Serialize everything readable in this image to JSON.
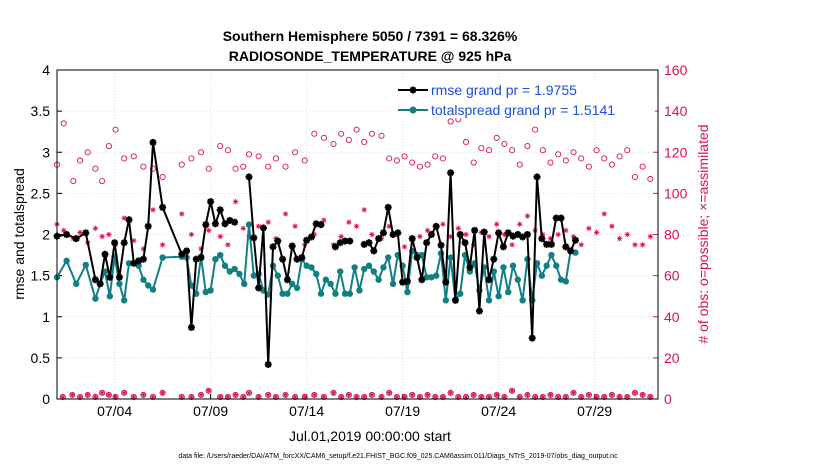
{
  "chart_data": {
    "type": "line",
    "title_line1": "Southern Hemisphere 5050 / 7391 = 68.326%",
    "title_line2": "RADIOSONDE_TEMPERATURE @ 925 hPa",
    "xlabel": "Jul.01,2019 00:00:00 start",
    "ylabel": "rmse and totalspread",
    "y2label": "# of obs: o=possible; ×=assimilated",
    "xlim": [
      1,
      32.3
    ],
    "ylim": [
      0,
      4
    ],
    "y2lim": [
      0,
      160
    ],
    "x_ticks": [
      {
        "value": 4,
        "label": "07/04"
      },
      {
        "value": 9,
        "label": "07/09"
      },
      {
        "value": 14,
        "label": "07/14"
      },
      {
        "value": 19,
        "label": "07/19"
      },
      {
        "value": 24,
        "label": "07/24"
      },
      {
        "value": 29,
        "label": "07/29"
      }
    ],
    "y_ticks": [
      {
        "value": 0,
        "label": "0"
      },
      {
        "value": 0.5,
        "label": "0.5"
      },
      {
        "value": 1,
        "label": "1"
      },
      {
        "value": 1.5,
        "label": "1.5"
      },
      {
        "value": 2,
        "label": "2"
      },
      {
        "value": 2.5,
        "label": "2.5"
      },
      {
        "value": 3,
        "label": "3"
      },
      {
        "value": 3.5,
        "label": "3.5"
      },
      {
        "value": 4,
        "label": "4"
      }
    ],
    "y2_ticks": [
      {
        "value": 0,
        "label": "0"
      },
      {
        "value": 20,
        "label": "20"
      },
      {
        "value": 40,
        "label": "40"
      },
      {
        "value": 60,
        "label": "60"
      },
      {
        "value": 80,
        "label": "80"
      },
      {
        "value": 100,
        "label": "100"
      },
      {
        "value": 120,
        "label": "120"
      },
      {
        "value": 140,
        "label": "140"
      },
      {
        "value": 160,
        "label": "160"
      }
    ],
    "legend": [
      {
        "label": "rmse grand pr = 1.9755",
        "color": "#000000",
        "marker": "star"
      },
      {
        "label": "totalspread grand pr = 1.5141",
        "color": "#117f83",
        "marker": "dot"
      }
    ],
    "colors": {
      "rmse": "#000000",
      "spread": "#117f83",
      "obs": "#d7125a"
    },
    "series": [
      {
        "name": "rmse",
        "x": [
          1.0,
          1.5,
          2.0,
          2.5,
          3.0,
          3.25,
          3.5,
          3.75,
          4.0,
          4.25,
          4.5,
          4.75,
          5.0,
          5.25,
          5.5,
          5.75,
          6.0,
          6.5,
          7.5,
          7.75,
          8.0,
          8.25,
          8.5,
          8.75,
          9.0,
          9.25,
          9.5,
          9.75,
          10.0,
          10.25,
          10.5,
          10.75,
          11.0,
          11.25,
          11.5,
          11.75,
          12.0,
          12.25,
          12.5,
          12.75,
          13.0,
          13.25,
          13.5,
          13.75,
          14.0,
          14.25,
          14.5,
          14.75,
          15.0,
          15.25,
          15.5,
          15.75,
          16.0,
          16.25,
          16.5,
          16.75,
          17.0,
          17.25,
          17.5,
          17.75,
          18.0,
          18.25,
          18.5,
          18.75,
          19.0,
          19.25,
          19.5,
          19.75,
          20.0,
          20.25,
          20.5,
          20.75,
          21.0,
          21.25,
          21.5,
          21.75,
          22.0,
          22.25,
          22.5,
          22.75,
          23.0,
          23.25,
          23.5,
          23.75,
          24.0,
          24.25,
          24.5,
          24.75,
          25.0,
          25.25,
          25.5,
          25.75,
          26.0,
          26.25,
          26.5,
          26.75,
          27.0,
          27.25,
          27.5,
          27.75,
          28.0,
          28.25,
          28.5,
          28.75,
          29.0,
          29.25,
          29.5,
          29.75,
          30.0,
          30.25,
          30.5,
          30.75,
          31.0,
          31.25,
          31.5,
          31.75,
          32.0
        ],
        "values": [
          1.98,
          2.0,
          1.95,
          2.02,
          1.45,
          1.4,
          1.76,
          1.48,
          1.9,
          1.48,
          1.9,
          2.18,
          1.65,
          1.68,
          1.7,
          2.1,
          3.12,
          2.33,
          1.76,
          1.8,
          0.87,
          1.7,
          1.72,
          2.12,
          2.4,
          2.13,
          2.3,
          2.13,
          2.17,
          2.15,
          null,
          null,
          2.7,
          1.96,
          1.35,
          2.08,
          0.42,
          1.85,
          1.92,
          1.7,
          1.45,
          1.86,
          1.7,
          1.72,
          1.93,
          1.97,
          2.13,
          2.12,
          null,
          null,
          1.85,
          1.9,
          1.92,
          1.92,
          null,
          null,
          1.88,
          1.9,
          1.8,
          1.95,
          2.02,
          2.33,
          2.0,
          2.02,
          1.42,
          1.43,
          1.95,
          1.72,
          1.45,
          1.9,
          2.0,
          2.1,
          1.87,
          1.42,
          2.75,
          1.2,
          2.0,
          1.9,
          1.6,
          2.05,
          1.07,
          2.03,
          1.45,
          1.7,
          2.02,
          1.85,
          2.02,
          1.98,
          2.0,
          1.97,
          2.0,
          0.74,
          2.7,
          1.95,
          1.88,
          1.88,
          2.2,
          2.2,
          1.85,
          1.8,
          1.93,
          null,
          null,
          null,
          null,
          null,
          null,
          null,
          null,
          null,
          null,
          null,
          null,
          null,
          null,
          null,
          null
        ]
      },
      {
        "name": "totalspread",
        "x": [
          1.0,
          1.5,
          2.0,
          2.5,
          3.0,
          3.25,
          3.5,
          3.75,
          4.0,
          4.25,
          4.5,
          4.75,
          5.0,
          5.25,
          5.5,
          5.75,
          6.0,
          6.5,
          7.5,
          7.75,
          8.0,
          8.25,
          8.5,
          8.75,
          9.0,
          9.25,
          9.5,
          9.75,
          10.0,
          10.25,
          10.5,
          10.75,
          11.0,
          11.25,
          11.5,
          11.75,
          12.0,
          12.25,
          12.5,
          12.75,
          13.0,
          13.25,
          13.5,
          13.75,
          14.0,
          14.25,
          14.5,
          14.75,
          15.0,
          15.25,
          15.5,
          15.75,
          16.0,
          16.25,
          16.5,
          16.75,
          17.0,
          17.25,
          17.5,
          17.75,
          18.0,
          18.25,
          18.5,
          18.75,
          19.0,
          19.25,
          19.5,
          19.75,
          20.0,
          20.25,
          20.5,
          20.75,
          21.0,
          21.25,
          21.5,
          21.75,
          22.0,
          22.25,
          22.5,
          22.75,
          23.0,
          23.25,
          23.5,
          23.75,
          24.0,
          24.25,
          24.5,
          24.75,
          25.0,
          25.25,
          25.5,
          25.75,
          26.0,
          26.25,
          26.5,
          26.75,
          27.0,
          27.25,
          27.5,
          27.75,
          28.0
        ],
        "values": [
          1.48,
          1.68,
          1.4,
          1.63,
          1.22,
          1.4,
          1.55,
          1.25,
          1.73,
          1.4,
          1.2,
          1.65,
          null,
          1.62,
          1.45,
          1.38,
          1.33,
          1.72,
          1.73,
          1.72,
          1.38,
          1.28,
          1.73,
          1.3,
          1.32,
          1.7,
          1.75,
          1.62,
          1.55,
          1.58,
          1.52,
          1.4,
          2.12,
          1.5,
          1.52,
          1.32,
          1.27,
          1.62,
          1.5,
          1.28,
          1.28,
          1.4,
          1.35,
          1.7,
          1.62,
          1.6,
          1.52,
          1.28,
          1.45,
          1.4,
          1.28,
          1.55,
          1.28,
          1.28,
          1.6,
          1.32,
          1.58,
          1.62,
          1.55,
          1.45,
          1.6,
          1.72,
          1.4,
          1.75,
          1.62,
          1.3,
          1.8,
          1.75,
          1.75,
          1.48,
          1.48,
          1.5,
          1.77,
          1.2,
          1.72,
          1.2,
          1.28,
          1.75,
          1.55,
          1.65,
          1.32,
          1.6,
          1.2,
          1.55,
          1.25,
          1.6,
          1.3,
          1.62,
          1.45,
          1.2,
          1.7,
          1.2,
          1.65,
          1.5,
          1.62,
          1.75,
          1.62,
          1.45,
          1.43,
          1.8,
          1.78
        ]
      },
      {
        "name": "obs_possible",
        "x": [
          1.0,
          1.35,
          1.85,
          2.2,
          2.6,
          3.0,
          3.35,
          3.7,
          4.05,
          4.5,
          5.0,
          5.5,
          6.0,
          6.5,
          7.5,
          8.0,
          8.5,
          8.9,
          9.5,
          9.9,
          10.3,
          10.7,
          11.0,
          11.5,
          12.0,
          12.4,
          12.9,
          13.4,
          13.9,
          14.4,
          14.9,
          15.4,
          15.8,
          16.2,
          16.6,
          17.0,
          17.4,
          17.9,
          18.3,
          18.7,
          19.1,
          19.5,
          19.9,
          20.3,
          20.7,
          21.1,
          21.5,
          21.9,
          22.3,
          22.7,
          23.1,
          23.5,
          23.9,
          24.3,
          24.7,
          25.1,
          25.5,
          25.9,
          26.3,
          26.7,
          27.1,
          27.5,
          27.9,
          28.3,
          28.7,
          29.1,
          29.5,
          29.9,
          30.3,
          30.7,
          31.1,
          31.5,
          31.9
        ],
        "values": [
          114,
          134,
          106,
          116,
          120,
          112,
          106,
          123,
          131,
          117,
          118,
          113,
          112,
          108,
          114,
          117,
          120,
          112,
          123,
          121,
          112,
          113,
          119,
          118,
          113,
          117,
          113,
          120,
          116,
          129,
          127,
          124,
          129,
          126,
          131,
          125,
          129,
          128,
          117,
          116,
          118,
          115,
          113,
          114,
          118,
          117,
          135,
          136,
          125,
          115,
          122,
          121,
          127,
          124,
          121,
          114,
          123,
          131,
          121,
          115,
          119,
          116,
          120,
          117,
          113,
          121,
          117,
          114,
          118,
          121,
          108,
          113,
          107
        ]
      },
      {
        "name": "obs_assimilated",
        "x": [
          1.0,
          1.35,
          1.85,
          2.2,
          2.6,
          3.0,
          3.35,
          3.7,
          4.05,
          4.5,
          5.0,
          5.5,
          6.0,
          6.5,
          7.5,
          8.0,
          8.5,
          8.9,
          9.5,
          9.9,
          10.3,
          10.7,
          11.0,
          11.5,
          12.0,
          12.4,
          12.9,
          13.4,
          13.9,
          14.4,
          14.9,
          15.4,
          15.8,
          16.2,
          16.6,
          17.0,
          17.4,
          17.9,
          18.3,
          18.7,
          19.1,
          19.5,
          19.9,
          20.3,
          20.7,
          21.1,
          21.5,
          21.9,
          22.3,
          22.7,
          23.1,
          23.5,
          23.9,
          24.3,
          24.7,
          25.1,
          25.5,
          25.9,
          26.3,
          26.7,
          27.1,
          27.5,
          27.9,
          28.3,
          28.7,
          29.1,
          29.5,
          29.9,
          30.3,
          30.7,
          31.1,
          31.5,
          31.9
        ],
        "values": [
          85,
          82,
          78,
          81,
          76,
          83,
          79,
          80,
          75,
          88,
          77,
          73,
          92,
          75,
          90,
          80,
          73,
          82,
          79,
          75,
          96,
          83,
          79,
          84,
          86,
          78,
          90,
          84,
          75,
          80,
          87,
          75,
          79,
          86,
          84,
          92,
          80,
          78,
          84,
          80,
          74,
          78,
          79,
          82,
          84,
          85,
          79,
          83,
          80,
          75,
          81,
          79,
          85,
          80,
          75,
          85,
          89,
          82,
          80,
          78,
          80,
          82,
          79,
          75,
          83,
          81,
          90,
          84,
          78,
          80,
          75,
          75,
          79
        ]
      }
    ],
    "obs_near_zero": [
      1.3,
      1.8,
      2.2,
      2.6,
      3.0,
      3.35,
      3.7,
      4.05,
      4.5,
      5.0,
      5.5,
      6.0,
      6.5,
      7.5,
      8.0,
      8.5,
      8.9,
      9.5,
      9.9,
      10.3,
      10.7,
      11.0,
      11.5,
      12.0,
      12.4,
      12.9,
      13.4,
      13.9,
      14.4,
      14.9,
      15.4,
      15.8,
      16.2,
      16.6,
      17.0,
      17.4,
      17.9,
      18.3,
      18.7,
      19.1,
      19.5,
      19.9,
      20.3,
      20.7,
      21.1,
      21.5,
      21.9,
      22.3,
      22.7,
      23.1,
      23.5,
      23.9,
      24.3,
      24.7,
      25.1,
      25.5,
      25.9,
      26.3,
      26.7,
      27.1,
      27.5,
      27.9,
      28.3,
      28.7,
      29.1,
      29.5,
      29.9,
      30.3,
      30.7,
      31.1,
      31.5,
      31.9
    ],
    "obs_near_zero_values": [
      1,
      2,
      1,
      2,
      1,
      3,
      2,
      1,
      3,
      1,
      2,
      1,
      3,
      1,
      1,
      2,
      4,
      1,
      1,
      2,
      1,
      3,
      1,
      2,
      1,
      2,
      1,
      1,
      2,
      1,
      3,
      1,
      2,
      1,
      1,
      2,
      1,
      3,
      1,
      1,
      2,
      1,
      2,
      1,
      1,
      3,
      1,
      1,
      2,
      1,
      1,
      2,
      1,
      4,
      1,
      2,
      1,
      1,
      2,
      1,
      1,
      3,
      1,
      2,
      1,
      1,
      2,
      1,
      1,
      3,
      2,
      1
    ]
  },
  "footnote": "data file: /Users/raeder/DAI/ATM_forcXX/CAM6_setup/f.e21.FHIST_BGC.f09_025.CAM6assim.011/Diags_NTrS_2019-07/obs_diag_output.nc"
}
